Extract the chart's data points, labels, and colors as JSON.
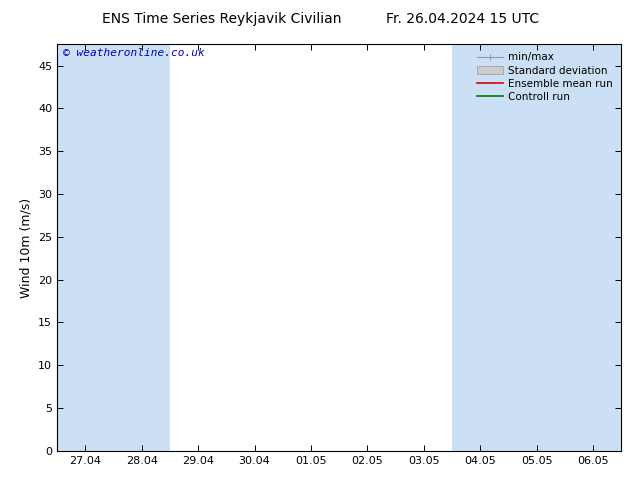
{
  "title_left": "ENS Time Series Reykjavik Civilian",
  "title_right": "Fr. 26.04.2024 15 UTC",
  "ylabel": "Wind 10m (m/s)",
  "watermark": "© weatheronline.co.uk",
  "ylim": [
    0,
    47.5
  ],
  "yticks": [
    0,
    5,
    10,
    15,
    20,
    25,
    30,
    35,
    40,
    45
  ],
  "xtick_labels": [
    "27.04",
    "28.04",
    "29.04",
    "30.04",
    "01.05",
    "02.05",
    "03.05",
    "04.05",
    "05.05",
    "06.05"
  ],
  "band_color": "#cce0f5",
  "bg_color": "#ffffff",
  "legend_items": [
    {
      "label": "min/max",
      "color": "#999999",
      "lw": 1.0,
      "style": "minmax"
    },
    {
      "label": "Standard deviation",
      "color": "#bbbbbb",
      "style": "fill"
    },
    {
      "label": "Ensemble mean run",
      "color": "#dd0000",
      "lw": 1.0,
      "style": "line"
    },
    {
      "label": "Controll run",
      "color": "#007700",
      "lw": 1.0,
      "style": "line"
    }
  ],
  "title_fontsize": 10,
  "tick_fontsize": 8,
  "ylabel_fontsize": 9,
  "watermark_color": "#0000bb",
  "watermark_fontsize": 8,
  "legend_fontsize": 7.5
}
